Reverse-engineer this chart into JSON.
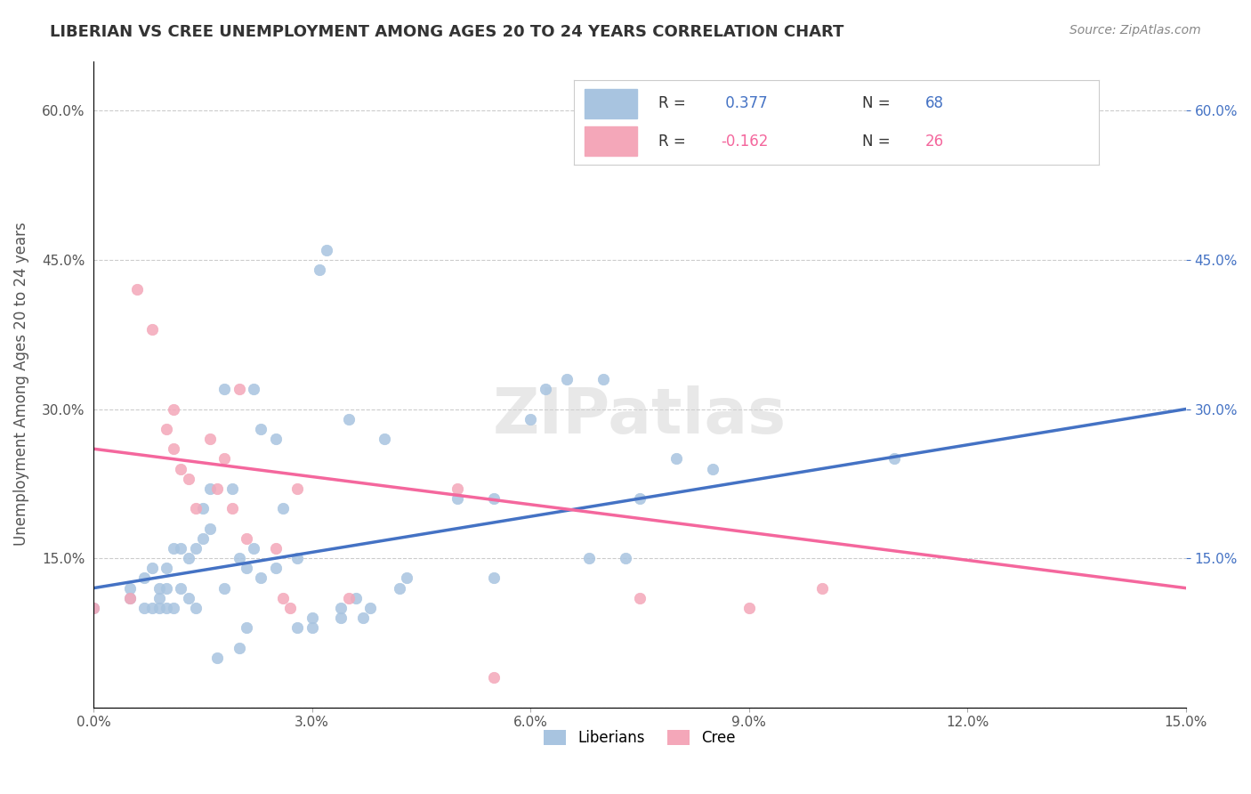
{
  "title": "LIBERIAN VS CREE UNEMPLOYMENT AMONG AGES 20 TO 24 YEARS CORRELATION CHART",
  "source": "Source: ZipAtlas.com",
  "xlabel": "",
  "ylabel": "Unemployment Among Ages 20 to 24 years",
  "xlim": [
    0.0,
    0.15
  ],
  "ylim": [
    0.0,
    0.65
  ],
  "xticks": [
    0.0,
    0.03,
    0.06,
    0.09,
    0.12,
    0.15
  ],
  "yticks_left": [
    0.0,
    0.15,
    0.3,
    0.45,
    0.6
  ],
  "yticks_right": [
    0.15,
    0.3,
    0.45,
    0.6
  ],
  "xtick_labels": [
    "0.0%",
    "3.0%",
    "6.0%",
    "9.0%",
    "12.0%",
    "15.0%"
  ],
  "ytick_labels_left": [
    "",
    "15.0%",
    "30.0%",
    "45.0%",
    "60.0%"
  ],
  "ytick_labels_right": [
    "15.0%",
    "30.0%",
    "45.0%",
    "60.0%"
  ],
  "liberian_color": "#a8c4e0",
  "cree_color": "#f4a7b9",
  "liberian_R": 0.377,
  "liberian_N": 68,
  "cree_R": -0.162,
  "cree_N": 26,
  "liberian_line_color": "#4472c4",
  "cree_line_color": "#f4679d",
  "watermark": "ZIPatlas",
  "legend_label_liberian": "Liberians",
  "legend_label_cree": "Cree",
  "liberian_scatter_x": [
    0.0,
    0.005,
    0.005,
    0.007,
    0.007,
    0.008,
    0.008,
    0.009,
    0.009,
    0.009,
    0.01,
    0.01,
    0.01,
    0.011,
    0.011,
    0.012,
    0.012,
    0.013,
    0.013,
    0.014,
    0.014,
    0.015,
    0.015,
    0.016,
    0.016,
    0.017,
    0.018,
    0.018,
    0.019,
    0.02,
    0.02,
    0.021,
    0.021,
    0.022,
    0.022,
    0.023,
    0.023,
    0.025,
    0.025,
    0.026,
    0.028,
    0.028,
    0.03,
    0.03,
    0.031,
    0.032,
    0.034,
    0.034,
    0.035,
    0.036,
    0.037,
    0.038,
    0.04,
    0.042,
    0.043,
    0.05,
    0.055,
    0.055,
    0.06,
    0.062,
    0.065,
    0.068,
    0.07,
    0.073,
    0.075,
    0.08,
    0.085,
    0.11
  ],
  "liberian_scatter_y": [
    0.1,
    0.11,
    0.12,
    0.1,
    0.13,
    0.1,
    0.14,
    0.1,
    0.11,
    0.12,
    0.1,
    0.12,
    0.14,
    0.1,
    0.16,
    0.12,
    0.16,
    0.11,
    0.15,
    0.1,
    0.16,
    0.17,
    0.2,
    0.18,
    0.22,
    0.05,
    0.32,
    0.12,
    0.22,
    0.06,
    0.15,
    0.08,
    0.14,
    0.16,
    0.32,
    0.13,
    0.28,
    0.14,
    0.27,
    0.2,
    0.08,
    0.15,
    0.08,
    0.09,
    0.44,
    0.46,
    0.09,
    0.1,
    0.29,
    0.11,
    0.09,
    0.1,
    0.27,
    0.12,
    0.13,
    0.21,
    0.21,
    0.13,
    0.29,
    0.32,
    0.33,
    0.15,
    0.33,
    0.15,
    0.21,
    0.25,
    0.24,
    0.25
  ],
  "cree_scatter_x": [
    0.0,
    0.005,
    0.006,
    0.008,
    0.01,
    0.011,
    0.011,
    0.012,
    0.013,
    0.014,
    0.016,
    0.017,
    0.018,
    0.019,
    0.02,
    0.021,
    0.025,
    0.026,
    0.027,
    0.028,
    0.035,
    0.05,
    0.055,
    0.075,
    0.09,
    0.1
  ],
  "cree_scatter_y": [
    0.1,
    0.11,
    0.42,
    0.38,
    0.28,
    0.26,
    0.3,
    0.24,
    0.23,
    0.2,
    0.27,
    0.22,
    0.25,
    0.2,
    0.32,
    0.17,
    0.16,
    0.11,
    0.1,
    0.22,
    0.11,
    0.22,
    0.03,
    0.11,
    0.1,
    0.12
  ],
  "liberian_line_x": [
    0.0,
    0.15
  ],
  "liberian_line_y": [
    0.12,
    0.3
  ],
  "cree_line_x": [
    0.0,
    0.15
  ],
  "cree_line_y": [
    0.26,
    0.12
  ]
}
